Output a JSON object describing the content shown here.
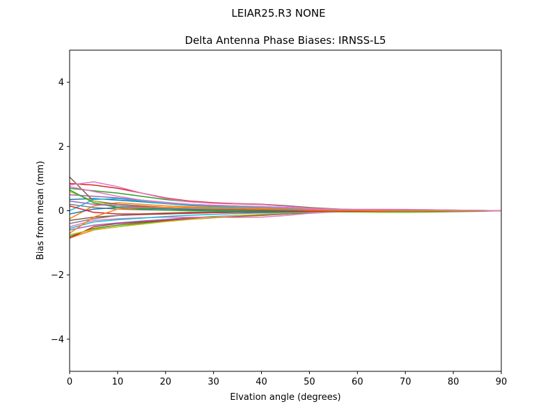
{
  "suptitle": "LEIAR25.R3      NONE",
  "chart_data": {
    "type": "line",
    "title": "Delta Antenna Phase Biases: IRNSS-L5",
    "xlabel": "Elvation angle (degrees)",
    "ylabel": "Bias from mean (mm)",
    "xlim": [
      0,
      90
    ],
    "ylim": [
      -5,
      5
    ],
    "xticks": [
      0,
      10,
      20,
      30,
      40,
      50,
      60,
      70,
      80,
      90
    ],
    "yticks": [
      -4,
      -2,
      0,
      2,
      4
    ],
    "ytick_labels": [
      "−4",
      "−2",
      "0",
      "2",
      "4"
    ],
    "grid": false,
    "x": [
      0,
      5,
      10,
      15,
      20,
      25,
      30,
      35,
      40,
      45,
      50,
      55,
      60,
      65,
      70,
      75,
      80,
      85,
      90
    ],
    "series": [
      {
        "color": "#1f77b4",
        "values": [
          0.35,
          0.38,
          0.33,
          0.28,
          0.22,
          0.18,
          0.15,
          0.14,
          0.12,
          0.1,
          0.07,
          0.05,
          0.04,
          0.04,
          0.03,
          0.03,
          0.02,
          0.01,
          0.0
        ]
      },
      {
        "color": "#ff7f0e",
        "values": [
          -0.25,
          0.15,
          0.25,
          0.2,
          0.15,
          0.12,
          0.1,
          0.09,
          0.08,
          0.06,
          0.04,
          0.03,
          0.02,
          0.02,
          0.02,
          0.01,
          0.01,
          0.0,
          0.0
        ]
      },
      {
        "color": "#2ca02c",
        "values": [
          0.7,
          0.62,
          0.55,
          0.45,
          0.35,
          0.28,
          0.24,
          0.22,
          0.2,
          0.16,
          0.1,
          0.06,
          0.03,
          0.02,
          0.0,
          -0.01,
          -0.01,
          0.0,
          0.0
        ]
      },
      {
        "color": "#d62728",
        "values": [
          0.85,
          0.8,
          0.7,
          0.55,
          0.4,
          0.3,
          0.25,
          0.22,
          0.2,
          0.15,
          0.09,
          0.05,
          0.03,
          0.02,
          0.01,
          0.0,
          0.0,
          0.0,
          0.0
        ]
      },
      {
        "color": "#9467bd",
        "values": [
          0.5,
          0.45,
          0.4,
          0.33,
          0.26,
          0.2,
          0.17,
          0.15,
          0.13,
          0.1,
          0.06,
          0.04,
          0.03,
          0.02,
          0.02,
          0.01,
          0.01,
          0.0,
          0.0
        ]
      },
      {
        "color": "#8c564b",
        "values": [
          1.05,
          0.3,
          0.2,
          0.15,
          0.1,
          0.08,
          0.06,
          0.05,
          0.04,
          0.03,
          0.02,
          0.01,
          0.0,
          0.0,
          0.0,
          0.0,
          0.0,
          0.0,
          0.0
        ]
      },
      {
        "color": "#e377c2",
        "values": [
          0.8,
          0.9,
          0.75,
          0.55,
          0.38,
          0.28,
          0.23,
          0.21,
          0.19,
          0.14,
          0.08,
          0.05,
          0.04,
          0.04,
          0.04,
          0.03,
          0.02,
          0.01,
          0.0
        ]
      },
      {
        "color": "#7f7f7f",
        "values": [
          0.2,
          0.1,
          0.05,
          0.03,
          0.02,
          0.01,
          0.0,
          0.0,
          0.0,
          0.0,
          0.0,
          0.0,
          0.0,
          0.0,
          0.0,
          0.0,
          0.0,
          0.0,
          0.0
        ]
      },
      {
        "color": "#bcbd22",
        "values": [
          0.6,
          0.3,
          0.15,
          0.1,
          0.08,
          0.06,
          0.05,
          0.05,
          0.04,
          0.03,
          0.02,
          0.02,
          0.01,
          0.01,
          0.01,
          0.01,
          0.0,
          0.0,
          0.0
        ]
      },
      {
        "color": "#17becf",
        "values": [
          0.0,
          0.35,
          0.38,
          0.3,
          0.22,
          0.16,
          0.13,
          0.12,
          0.11,
          0.08,
          0.05,
          0.03,
          0.02,
          0.01,
          0.01,
          0.0,
          0.0,
          0.0,
          0.0
        ]
      },
      {
        "color": "#1f77b4",
        "values": [
          -0.1,
          0.05,
          0.1,
          0.08,
          0.06,
          0.04,
          0.03,
          0.03,
          0.02,
          0.02,
          0.01,
          0.0,
          0.0,
          0.0,
          0.0,
          0.0,
          0.0,
          0.0,
          0.0
        ]
      },
      {
        "color": "#ff7f0e",
        "values": [
          -0.85,
          -0.6,
          -0.5,
          -0.4,
          -0.33,
          -0.27,
          -0.22,
          -0.18,
          -0.15,
          -0.1,
          -0.06,
          -0.04,
          -0.03,
          -0.02,
          -0.02,
          -0.01,
          -0.01,
          0.0,
          0.0
        ]
      },
      {
        "color": "#2ca02c",
        "values": [
          -0.8,
          -0.55,
          -0.45,
          -0.38,
          -0.32,
          -0.26,
          -0.21,
          -0.17,
          -0.14,
          -0.1,
          -0.06,
          -0.04,
          -0.04,
          -0.05,
          -0.05,
          -0.04,
          -0.03,
          -0.02,
          0.0
        ]
      },
      {
        "color": "#d62728",
        "values": [
          -0.85,
          -0.5,
          -0.4,
          -0.35,
          -0.3,
          -0.25,
          -0.2,
          -0.16,
          -0.13,
          -0.09,
          -0.05,
          -0.03,
          -0.02,
          -0.02,
          -0.01,
          -0.01,
          0.0,
          0.0,
          0.0
        ]
      },
      {
        "color": "#9467bd",
        "values": [
          -0.6,
          -0.45,
          -0.38,
          -0.32,
          -0.27,
          -0.22,
          -0.18,
          -0.15,
          -0.12,
          -0.08,
          -0.05,
          -0.03,
          -0.02,
          -0.02,
          -0.01,
          -0.01,
          0.0,
          0.0,
          0.0
        ]
      },
      {
        "color": "#8c564b",
        "values": [
          -0.3,
          -0.2,
          -0.15,
          -0.12,
          -0.1,
          -0.08,
          -0.06,
          -0.05,
          -0.04,
          -0.03,
          -0.02,
          -0.01,
          -0.01,
          -0.01,
          0.0,
          0.0,
          0.0,
          0.0,
          0.0
        ]
      },
      {
        "color": "#e377c2",
        "values": [
          -0.5,
          -0.3,
          -0.25,
          -0.22,
          -0.2,
          -0.2,
          -0.2,
          -0.21,
          -0.2,
          -0.15,
          -0.08,
          -0.04,
          -0.02,
          -0.02,
          -0.02,
          -0.02,
          -0.01,
          0.0,
          0.0
        ]
      },
      {
        "color": "#7f7f7f",
        "values": [
          -0.4,
          -0.25,
          -0.15,
          -0.1,
          -0.07,
          -0.05,
          -0.04,
          -0.03,
          -0.03,
          -0.02,
          -0.01,
          -0.01,
          0.0,
          0.0,
          0.0,
          0.0,
          0.0,
          0.0,
          0.0
        ]
      },
      {
        "color": "#bcbd22",
        "values": [
          -0.75,
          -0.58,
          -0.5,
          -0.42,
          -0.34,
          -0.27,
          -0.2,
          -0.15,
          -0.11,
          -0.07,
          -0.04,
          -0.03,
          -0.03,
          -0.04,
          -0.04,
          -0.03,
          -0.02,
          -0.01,
          0.0
        ]
      },
      {
        "color": "#17becf",
        "values": [
          -0.55,
          -0.35,
          -0.28,
          -0.23,
          -0.18,
          -0.14,
          -0.11,
          -0.09,
          -0.07,
          -0.05,
          -0.03,
          -0.02,
          -0.01,
          -0.01,
          0.0,
          0.0,
          0.0,
          0.0,
          0.0
        ]
      },
      {
        "color": "#2ca02c",
        "values": [
          0.65,
          0.25,
          0.1,
          0.05,
          0.02,
          0.0,
          -0.01,
          -0.02,
          -0.02,
          -0.02,
          -0.01,
          -0.01,
          -0.01,
          -0.02,
          -0.02,
          -0.02,
          -0.01,
          -0.01,
          0.0
        ]
      },
      {
        "color": "#d62728",
        "values": [
          0.15,
          -0.05,
          -0.1,
          -0.1,
          -0.09,
          -0.07,
          -0.06,
          -0.05,
          -0.04,
          -0.03,
          -0.02,
          -0.01,
          -0.01,
          -0.01,
          0.0,
          0.0,
          0.0,
          0.0,
          0.0
        ]
      },
      {
        "color": "#9467bd",
        "values": [
          0.3,
          0.2,
          0.15,
          0.12,
          0.1,
          0.08,
          0.07,
          0.06,
          0.05,
          0.04,
          0.03,
          0.02,
          0.02,
          0.02,
          0.02,
          0.01,
          0.01,
          0.0,
          0.0
        ]
      },
      {
        "color": "#ff7f0e",
        "values": [
          -0.7,
          -0.2,
          0.05,
          0.1,
          0.1,
          0.09,
          0.07,
          0.06,
          0.05,
          0.04,
          0.02,
          0.01,
          0.01,
          0.0,
          0.0,
          0.0,
          0.0,
          0.0,
          0.0
        ]
      },
      {
        "color": "#e377c2",
        "values": [
          0.75,
          0.6,
          0.45,
          0.33,
          0.25,
          0.2,
          0.17,
          0.15,
          0.13,
          0.1,
          0.06,
          0.04,
          0.04,
          0.04,
          0.04,
          0.03,
          0.02,
          0.01,
          0.0
        ]
      }
    ]
  }
}
